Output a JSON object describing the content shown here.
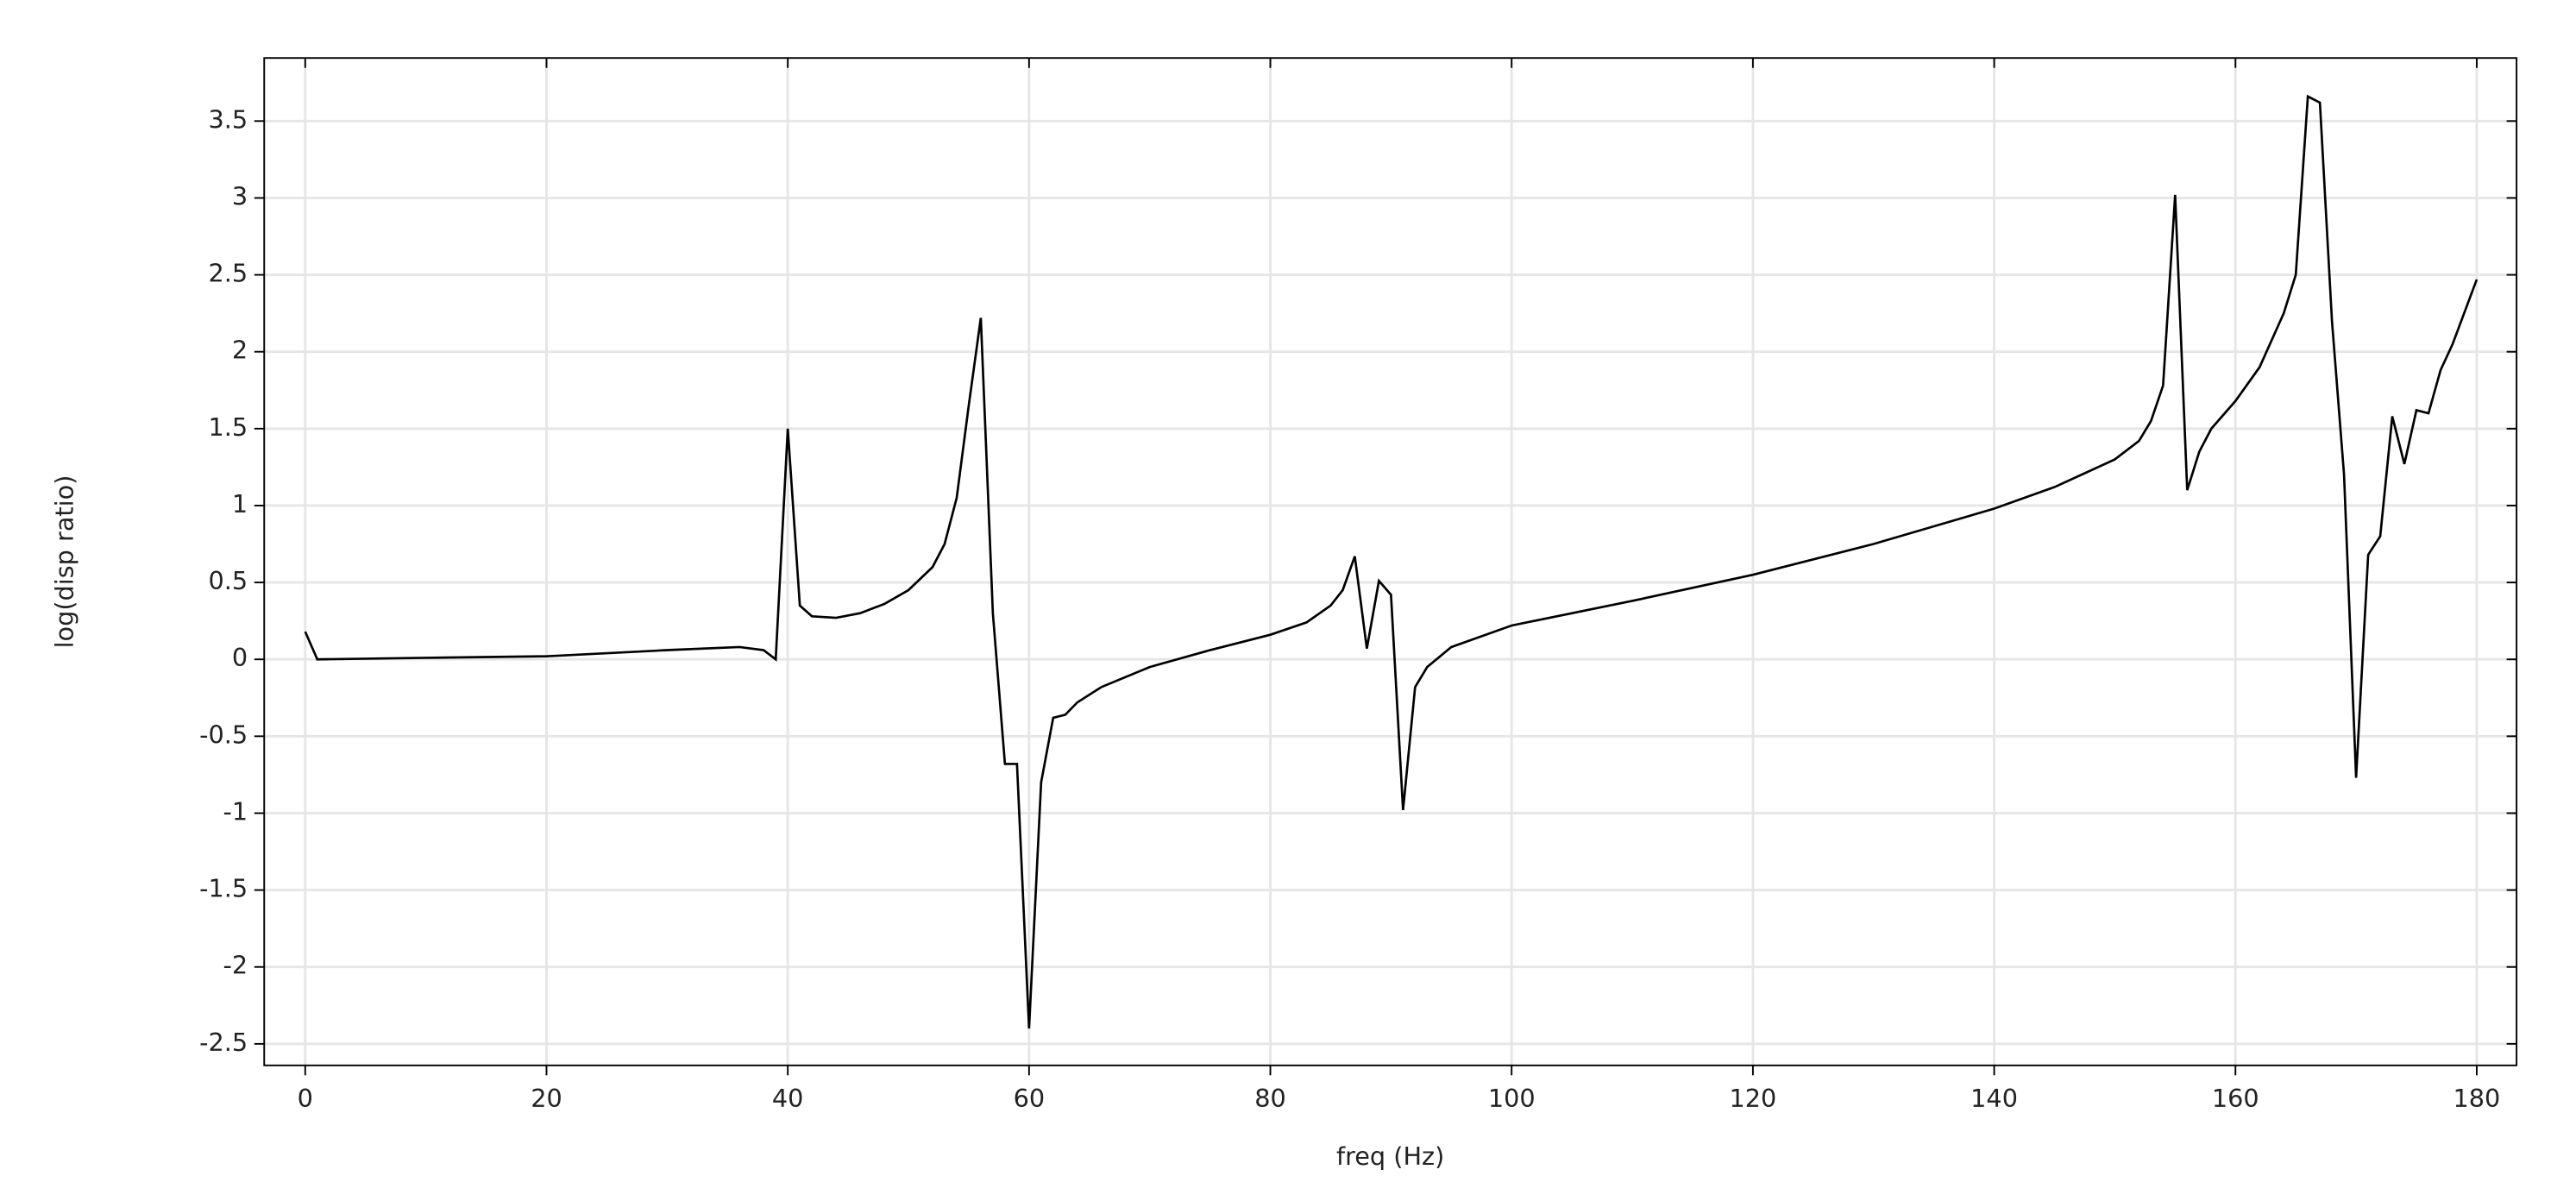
{
  "chart_data": {
    "type": "line",
    "x_label": "freq (Hz)",
    "y_label": "log(disp ratio)",
    "x": [
      0,
      1,
      10,
      20,
      30,
      36,
      38,
      39,
      40,
      41,
      42,
      44,
      46,
      48,
      50,
      52,
      53,
      54,
      55,
      56,
      57,
      58,
      59,
      60,
      61,
      62,
      63,
      64,
      66,
      70,
      75,
      80,
      83,
      85,
      86,
      87,
      88,
      89,
      90,
      91,
      92,
      93,
      95,
      100,
      110,
      120,
      130,
      140,
      145,
      150,
      152,
      153,
      154,
      155,
      156,
      157,
      158,
      160,
      162,
      164,
      165,
      166,
      167,
      168,
      169,
      170,
      171,
      172,
      173,
      174,
      175,
      176,
      177,
      178,
      180
    ],
    "series": [
      {
        "color": "#000000",
        "values": [
          0.18,
          0.0,
          0.01,
          0.02,
          0.06,
          0.08,
          0.06,
          0.0,
          1.5,
          0.35,
          0.28,
          0.27,
          0.3,
          0.36,
          0.45,
          0.6,
          0.75,
          1.05,
          1.65,
          2.22,
          0.3,
          -0.68,
          -0.68,
          -2.4,
          -0.8,
          -0.38,
          -0.36,
          -0.28,
          -0.18,
          -0.05,
          0.06,
          0.16,
          0.24,
          0.35,
          0.45,
          0.67,
          0.07,
          0.51,
          0.42,
          -0.98,
          -0.18,
          -0.05,
          0.08,
          0.22,
          0.38,
          0.55,
          0.75,
          0.98,
          1.12,
          1.3,
          1.42,
          1.55,
          1.78,
          3.02,
          1.1,
          1.35,
          1.5,
          1.68,
          1.9,
          2.25,
          2.5,
          3.66,
          3.62,
          2.2,
          1.2,
          -0.77,
          0.68,
          0.8,
          1.58,
          1.27,
          1.62,
          1.6,
          1.88,
          2.05,
          2.47
        ]
      }
    ],
    "xlim": [
      -3.4,
      183.3
    ],
    "ylim": [
      -2.64,
      3.91
    ],
    "xticks": [
      0,
      20,
      40,
      60,
      80,
      100,
      120,
      140,
      160,
      180
    ],
    "yticks": [
      -2.5,
      -2,
      -1.5,
      -1,
      -0.5,
      0,
      0.5,
      1,
      1.5,
      2,
      2.5,
      3,
      3.5
    ],
    "grid": true
  }
}
